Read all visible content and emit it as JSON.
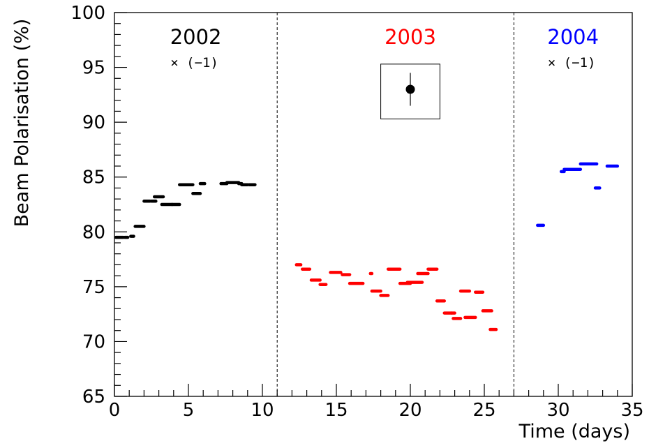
{
  "chart_data": {
    "type": "scatter",
    "xlabel": "Time (days)",
    "ylabel": "Beam Polarisation (%)",
    "xlim": [
      0,
      35
    ],
    "ylim": [
      65,
      100
    ],
    "xticks": [
      0,
      5,
      10,
      15,
      20,
      25,
      30,
      35
    ],
    "yticks": [
      65,
      70,
      75,
      80,
      85,
      90,
      95,
      100
    ],
    "x_tick_labels": [
      "0",
      "5",
      "10",
      "15",
      "20",
      "25",
      "30",
      "35"
    ],
    "y_tick_labels": [
      "65",
      "70",
      "75",
      "80",
      "85",
      "90",
      "95",
      "100"
    ],
    "grid": false,
    "dividers": [
      11.0,
      27.0
    ],
    "periods": [
      {
        "label": "2002",
        "factor": "× (−1)",
        "color": "#000000",
        "x_center": 5.5
      },
      {
        "label": "2003",
        "factor": "",
        "color": "#ff0000",
        "x_center": 20.0
      },
      {
        "label": "2004",
        "factor": "× (−1)",
        "color": "#0000ff",
        "x_center": 31.0
      }
    ],
    "error_legend": {
      "x": 20.0,
      "y": 93.0,
      "err": 1.5,
      "box_x": [
        18.0,
        22.0
      ],
      "box_y": [
        90.3,
        95.3
      ]
    },
    "series": [
      {
        "color": "#000000",
        "segments": [
          [
            0.1,
            0.6,
            79.5
          ],
          [
            0.7,
            0.9,
            79.5
          ],
          [
            1.1,
            1.3,
            79.6
          ],
          [
            1.4,
            2.0,
            80.5
          ],
          [
            2.0,
            2.4,
            82.8
          ],
          [
            2.5,
            2.8,
            82.8
          ],
          [
            2.7,
            3.3,
            83.2
          ],
          [
            3.2,
            3.9,
            82.5
          ],
          [
            3.9,
            4.4,
            82.5
          ],
          [
            4.4,
            5.3,
            84.3
          ],
          [
            5.3,
            5.8,
            83.5
          ],
          [
            5.8,
            6.1,
            84.4
          ],
          [
            7.2,
            7.6,
            84.4
          ],
          [
            7.6,
            8.4,
            84.5
          ],
          [
            8.4,
            8.6,
            84.4
          ],
          [
            8.6,
            9.0,
            84.3
          ],
          [
            9.1,
            9.5,
            84.3
          ]
        ]
      },
      {
        "color": "#ff0000",
        "segments": [
          [
            12.3,
            12.6,
            77.0
          ],
          [
            12.7,
            13.2,
            76.6
          ],
          [
            13.3,
            13.9,
            75.6
          ],
          [
            13.9,
            14.3,
            75.2
          ],
          [
            14.6,
            15.3,
            76.3
          ],
          [
            15.4,
            15.9,
            76.1
          ],
          [
            15.9,
            16.8,
            75.3
          ],
          [
            17.3,
            17.4,
            76.2
          ],
          [
            17.4,
            18.0,
            74.6
          ],
          [
            18.0,
            18.5,
            74.2
          ],
          [
            18.5,
            19.3,
            76.6
          ],
          [
            19.3,
            20.0,
            75.3
          ],
          [
            19.8,
            20.8,
            75.4
          ],
          [
            20.5,
            21.2,
            76.2
          ],
          [
            21.2,
            21.8,
            76.6
          ],
          [
            21.8,
            22.3,
            73.7
          ],
          [
            22.3,
            22.8,
            72.6
          ],
          [
            22.8,
            23.0,
            72.6
          ],
          [
            22.9,
            23.4,
            72.1
          ],
          [
            23.4,
            24.0,
            74.6
          ],
          [
            23.7,
            24.4,
            72.2
          ],
          [
            24.4,
            24.9,
            74.5
          ],
          [
            24.9,
            25.5,
            72.8
          ],
          [
            25.4,
            25.8,
            71.1
          ]
        ]
      },
      {
        "color": "#0000ff",
        "segments": [
          [
            28.6,
            29.0,
            80.6
          ],
          [
            30.2,
            30.4,
            85.5
          ],
          [
            30.4,
            31.5,
            85.7
          ],
          [
            31.5,
            32.6,
            86.2
          ],
          [
            32.5,
            32.8,
            84.0
          ],
          [
            33.3,
            34.0,
            86.0
          ]
        ]
      }
    ]
  }
}
